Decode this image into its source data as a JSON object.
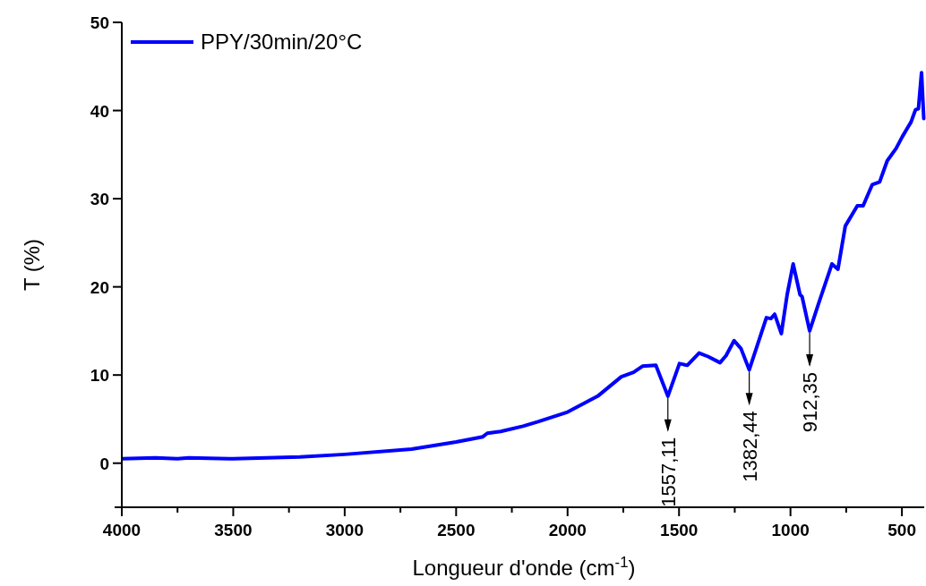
{
  "chart_data": {
    "type": "line",
    "xlabel": "Longueur d'onde (cm$^{-1}$)",
    "ylabel": "T (%)",
    "legend": "top left",
    "grid": false,
    "xlim": [
      4000,
      400
    ],
    "ylim": [
      -5,
      50
    ],
    "xticks": [
      4000,
      {
        "value": 3750,
        "label": null
      },
      3500,
      {
        "value": 3250,
        "label": null
      },
      3000,
      {
        "value": 2750,
        "label": null
      },
      2500,
      {
        "value": 2250,
        "label": null
      },
      2000,
      {
        "value": 1750,
        "label": null
      },
      1500,
      {
        "value": 1250,
        "label": null
      },
      1000,
      {
        "value": 750,
        "label": null
      },
      500
    ],
    "yticks": [
      0,
      10,
      20,
      30,
      40,
      50
    ],
    "series": [
      {
        "name": "PPY/30min/20°C",
        "color": "#0000ff",
        "x": [
          4000,
          3850,
          3750,
          3700,
          3500,
          3200,
          3000,
          2700,
          2500,
          2380,
          2360,
          2300,
          2200,
          2133,
          2000,
          1865,
          1759,
          1704,
          1664,
          1604,
          1550,
          1498,
          1463,
          1410,
          1370,
          1316,
          1289,
          1253,
          1222,
          1185,
          1108,
          1088,
          1071,
          1041,
          1015,
          988,
          957,
          948,
          914,
          874,
          814,
          787,
          754,
          700,
          674,
          633,
          600,
          566,
          526,
          499,
          459,
          439,
          426,
          412,
          402
        ],
        "values": [
          0.5,
          0.6,
          0.5,
          0.6,
          0.5,
          0.7,
          1.0,
          1.6,
          2.4,
          3.0,
          3.4,
          3.6,
          4.2,
          4.7,
          5.8,
          7.6,
          9.8,
          10.3,
          11.0,
          11.1,
          7.6,
          11.3,
          11.1,
          12.5,
          12.1,
          11.4,
          12.2,
          13.9,
          13.0,
          10.6,
          16.5,
          16.4,
          16.9,
          14.7,
          19.1,
          22.6,
          19.1,
          18.9,
          15.0,
          18.1,
          22.6,
          22.0,
          26.9,
          29.2,
          29.2,
          31.6,
          31.9,
          34.3,
          35.7,
          37.0,
          38.7,
          40.1,
          40.2,
          44.3,
          39.1
        ]
      }
    ],
    "annotations": [
      {
        "text": "1557,11",
        "x": 1550,
        "y": 7.6
      },
      {
        "text": "1382,44",
        "x": 1185,
        "y": 10.6
      },
      {
        "text": "912,35",
        "x": 914,
        "y": 15.0
      }
    ]
  }
}
